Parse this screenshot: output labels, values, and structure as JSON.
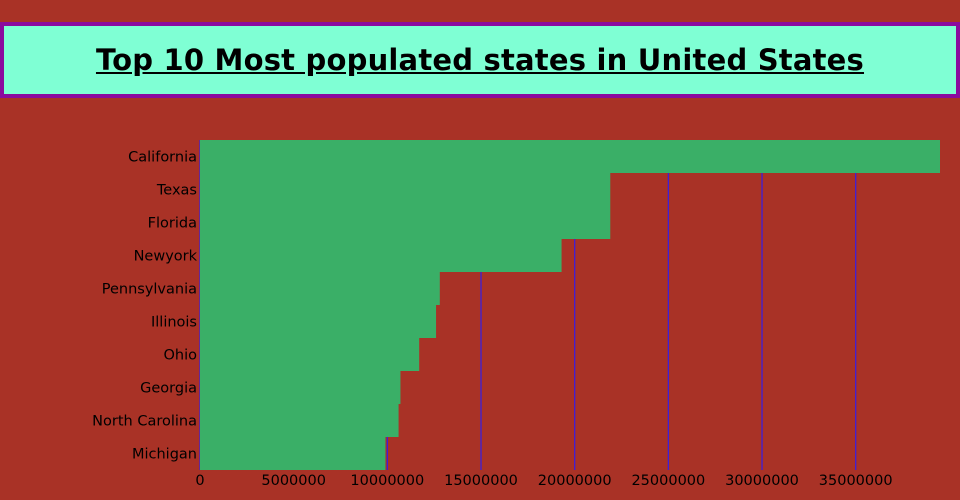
{
  "title": "Top 10 Most populated states in United States",
  "colors": {
    "background": "#a93226",
    "title_bg": "#7fffd4",
    "title_border": "#8b0a9e",
    "bar": "#3aaf67",
    "grid": "#3f1fd6"
  },
  "chart_data": {
    "type": "bar",
    "orientation": "horizontal",
    "title": "Top 10 Most populated states in United States",
    "xlabel": "",
    "ylabel": "",
    "categories": [
      "California",
      "Texas",
      "Florida",
      "Newyork",
      "Pennsylvania",
      "Illinois",
      "Ohio",
      "Georgia",
      "North Carolina",
      "Michigan"
    ],
    "values": [
      39500000,
      21900000,
      21900000,
      19300000,
      12800000,
      12600000,
      11700000,
      10700000,
      10600000,
      9900000
    ],
    "xlim": [
      0,
      39500000
    ],
    "xticks": [
      "0",
      "5000000",
      "10000000",
      "15000000",
      "20000000",
      "25000000",
      "30000000",
      "35000000"
    ],
    "grid": "vertical",
    "legend": "none"
  }
}
